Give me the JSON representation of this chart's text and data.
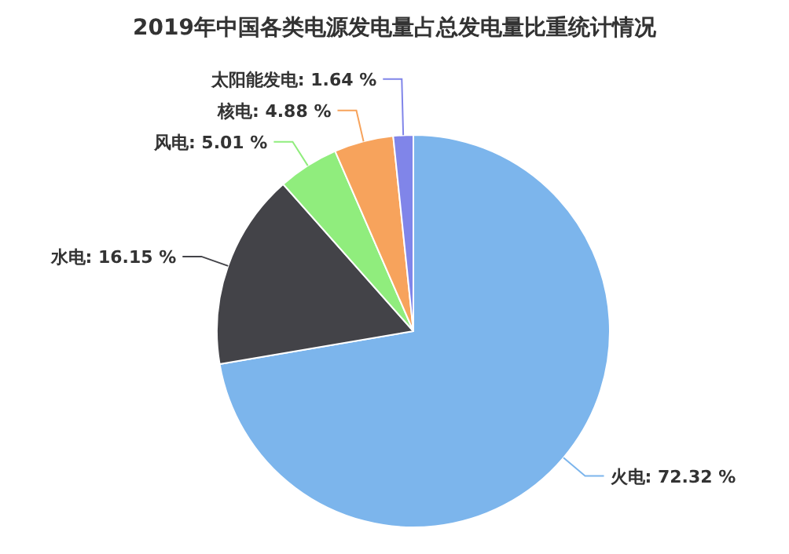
{
  "chart_data": {
    "type": "pie",
    "title": "2019年中国各类电源发电量占总发电量比重统计情况",
    "categories": [
      "火电",
      "水电",
      "风电",
      "核电",
      "太阳能发电"
    ],
    "values": [
      72.32,
      16.15,
      5.01,
      4.88,
      1.64
    ],
    "value_labels": [
      "72.32 %",
      "16.15 %",
      "5.01 %",
      "4.88 %",
      "1.64 %"
    ],
    "colors": [
      "#7cb5ec",
      "#434348",
      "#90ed7d",
      "#f7a35c",
      "#8085e9"
    ]
  }
}
